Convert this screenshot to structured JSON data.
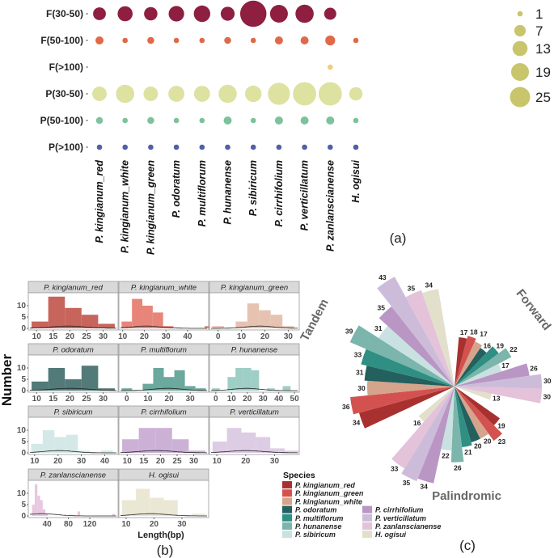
{
  "chart_data": [
    {
      "type": "scatter",
      "panel_label": "(a)",
      "rows": [
        "F(30-50)",
        "F(50-100)",
        "F(>100)",
        "P(30-50)",
        "P(50-100)",
        "P(>100)"
      ],
      "columns": [
        "P. kingianum_red",
        "P. kingianum_white",
        "P. kingianum_green",
        "P. odoratum",
        "P. multiflorum",
        "P. hunanense",
        "P. sibiricum",
        "P. cirrhifolium",
        "P. verticillatum",
        "P. zanlanscianense",
        "H. ogisui"
      ],
      "row_colors": [
        "#8e1f40",
        "#e0694a",
        "#f0cf7a",
        "#dde2a0",
        "#7cc29a",
        "#4f5fa8"
      ],
      "values": [
        [
          9,
          13,
          10,
          14,
          16,
          11,
          44,
          19,
          20,
          8,
          null
        ],
        [
          3,
          1,
          2,
          1,
          1,
          2,
          1,
          3,
          3,
          5,
          1
        ],
        [
          null,
          null,
          null,
          null,
          null,
          null,
          null,
          null,
          null,
          1,
          null
        ],
        [
          12,
          20,
          12,
          15,
          15,
          20,
          16,
          30,
          34,
          34,
          10
        ],
        [
          2,
          1,
          2,
          1,
          1,
          3,
          1,
          3,
          3,
          3,
          1
        ],
        [
          1,
          1,
          1,
          1,
          1,
          1,
          1,
          1,
          1,
          1,
          1
        ]
      ],
      "size_legend": {
        "values": [
          1,
          7,
          13,
          19,
          25
        ],
        "labels": [
          "1",
          "7",
          "13",
          "19",
          "25"
        ],
        "color": "#c9c56c"
      }
    },
    {
      "type": "bar",
      "subtype": "faceted-histogram",
      "panel_label": "(b)",
      "xlabel": "Length(bp)",
      "ylabel": "Number",
      "ylim": [
        0,
        15
      ],
      "yticks": [
        0,
        5,
        10
      ],
      "facets": [
        {
          "title": "P. kingianum_red",
          "color": "#c1544a",
          "xlim": [
            8,
            34
          ],
          "xticks": [
            10,
            15,
            20,
            25,
            30
          ],
          "bin_start": 8.5,
          "bin_width": 5,
          "counts": [
            3,
            14,
            9,
            6,
            2
          ]
        },
        {
          "title": "P. kingianum_white",
          "color": "#e5786c",
          "xlim": [
            9,
            49
          ],
          "xticks": [
            10,
            20,
            30,
            40
          ],
          "bin_start": 9.5,
          "bin_width": 4.8,
          "counts": [
            3,
            13,
            10,
            7,
            1,
            0,
            0,
            0,
            1
          ]
        },
        {
          "title": "P. kingianum_green",
          "color": "#e3bda8",
          "xlim": [
            -3,
            34
          ],
          "xticks": [
            0,
            10,
            20,
            30
          ],
          "bin_start": -2.5,
          "bin_width": 5,
          "counts": [
            1,
            0,
            3,
            11,
            8,
            6,
            1
          ]
        },
        {
          "title": "P. odoratum",
          "color": "#3f6b69",
          "xlim": [
            8,
            34
          ],
          "xticks": [
            10,
            15,
            20,
            25,
            30
          ],
          "bin_start": 8.5,
          "bin_width": 5,
          "counts": [
            4,
            10,
            5,
            11,
            1
          ]
        },
        {
          "title": "P. multiflorum",
          "color": "#5b9e94",
          "xlim": [
            -3,
            38
          ],
          "xticks": [
            0,
            10,
            20,
            30
          ],
          "bin_start": -2.5,
          "bin_width": 5,
          "counts": [
            1,
            0,
            3,
            10,
            6,
            9,
            2,
            1
          ]
        },
        {
          "title": "P. hunanense",
          "color": "#93c9bf",
          "xlim": [
            -3,
            52
          ],
          "xticks": [
            0,
            10,
            20,
            30,
            40,
            50
          ],
          "bin_start": -2.5,
          "bin_width": 5,
          "counts": [
            1,
            0,
            6,
            10,
            10,
            9,
            0,
            1,
            0,
            2
          ]
        },
        {
          "title": "P. sibiricum",
          "color": "#cfe6e4",
          "xlim": [
            8,
            45
          ],
          "xticks": [
            10,
            20,
            30,
            40
          ],
          "bin_start": 8.5,
          "bin_width": 5,
          "counts": [
            4,
            10,
            7,
            8,
            1,
            0,
            1
          ]
        },
        {
          "title": "P. cirrhifolium",
          "color": "#c7a9d1",
          "xlim": [
            8,
            34
          ],
          "xticks": [
            10,
            15,
            20,
            25,
            30
          ],
          "bin_start": 8.5,
          "bin_width": 5,
          "counts": [
            6,
            11,
            11,
            6,
            1
          ]
        },
        {
          "title": "P. verticillatum",
          "color": "#d8c8e2",
          "xlim": [
            8,
            38
          ],
          "xticks": [
            10,
            20,
            30
          ],
          "bin_start": 8.5,
          "bin_width": 5,
          "counts": [
            5,
            11,
            9,
            7,
            2,
            1
          ]
        },
        {
          "title": "P. zanlanscianense",
          "color": "#e6c2dd",
          "xlim": [
            8,
            170
          ],
          "xticks": [
            40,
            80,
            120
          ],
          "bin_start": 12,
          "bin_width": 5,
          "counts": [
            5,
            14,
            9,
            7,
            3,
            1,
            0,
            0,
            0,
            0,
            0,
            0,
            0,
            0,
            0,
            0,
            0,
            2,
            0,
            0,
            0,
            0,
            0,
            0,
            0,
            0,
            0,
            0,
            0,
            0,
            1
          ]
        },
        {
          "title": "H. ogisui",
          "color": "#e8e6d0",
          "xlim": [
            8,
            39
          ],
          "xticks": [
            10,
            20,
            30
          ],
          "bin_start": 8.5,
          "bin_width": 5,
          "counts": [
            7,
            12,
            8,
            7,
            0,
            1
          ]
        }
      ]
    },
    {
      "type": "bar",
      "subtype": "radial",
      "panel_label": "(c)",
      "groups": [
        "Forward",
        "Palindromic",
        "Tandem"
      ],
      "legend_title": "Species",
      "species": [
        "P. kingianum_red",
        "P. kingianum_green",
        "P. kingianum_white",
        "P. odoratum",
        "P. multiflorum",
        "P. hunanense",
        "P. sibiricum",
        "P. cirrhifolium",
        "P. verticillatum",
        "P. zanlanscianense",
        "H. ogisui"
      ],
      "colors": [
        "#a8312f",
        "#d3524f",
        "#d5a48c",
        "#23605e",
        "#2f8f83",
        "#7bb5ac",
        "#c9e1e1",
        "#b996c4",
        "#cdbcd9",
        "#e3c2da",
        "#e2e0cb"
      ],
      "values": {
        "Forward": [
          17,
          18,
          17,
          16,
          19,
          22,
          17,
          26,
          30,
          30,
          13
        ],
        "Palindromic": [
          19,
          23,
          20,
          20,
          21,
          26,
          22,
          34,
          35,
          33,
          16
        ],
        "Tandem": [
          34,
          36,
          30,
          31,
          33,
          39,
          31,
          35,
          43,
          35,
          34
        ]
      }
    }
  ]
}
